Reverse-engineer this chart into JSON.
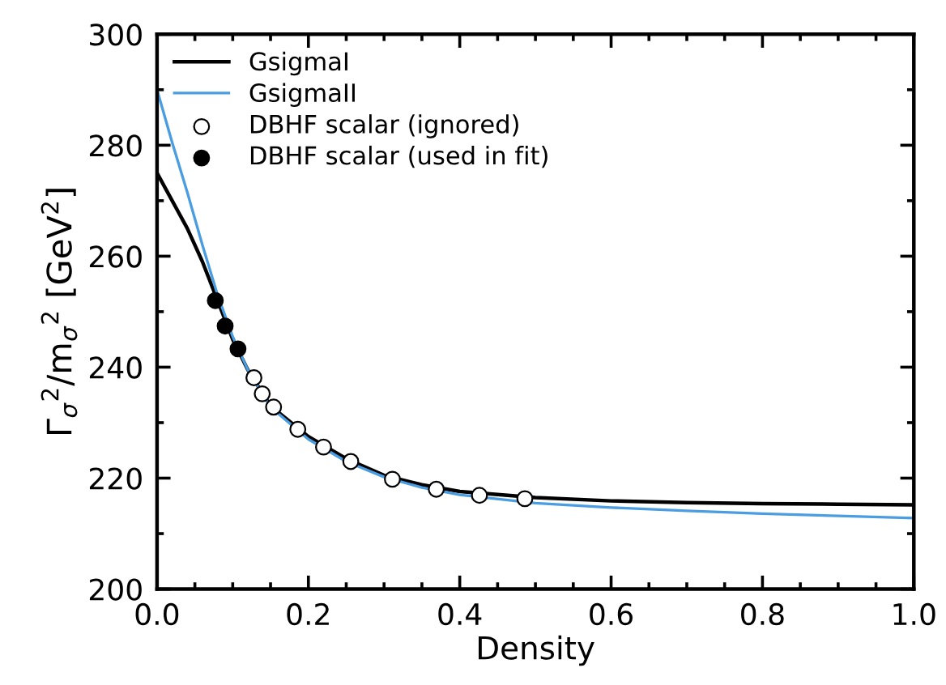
{
  "chart_data": {
    "type": "line",
    "xlabel": "Density",
    "ylabel": "Γ$_{σ}$$^{2}$/m$_{σ}$$^{2}$ [GeV$^{2}$]",
    "xlim": [
      0.0,
      1.0
    ],
    "xticks": [
      {
        "value": 0.0,
        "label": "0.0"
      },
      0.2,
      0.4,
      0.6,
      0.8,
      {
        "value": 1.0,
        "label": "1.0"
      }
    ],
    "ylim": [
      200,
      300
    ],
    "yticks": [
      200,
      220,
      240,
      260,
      280,
      300
    ],
    "grid": false,
    "legend": "top left",
    "series": [
      {
        "name": "GsigmaI",
        "color": "#000000",
        "marker": "none",
        "x": [
          0,
          0.02,
          0.04,
          0.06,
          0.08,
          0.1,
          0.12,
          0.15,
          0.2,
          0.25,
          0.3,
          0.35,
          0.4,
          0.5,
          0.6,
          0.7,
          0.8,
          0.9,
          1.0
        ],
        "values": [
          275,
          270,
          265,
          259,
          252,
          245,
          239.5,
          233,
          227.5,
          223.5,
          220.5,
          218.8,
          217.6,
          216.5,
          215.9,
          215.6,
          215.4,
          215.3,
          215.2
        ]
      },
      {
        "name": "GsigmaII",
        "color": "#4a9de0",
        "marker": "none",
        "x": [
          0,
          0.02,
          0.04,
          0.06,
          0.08,
          0.1,
          0.12,
          0.15,
          0.2,
          0.25,
          0.3,
          0.35,
          0.4,
          0.5,
          0.6,
          0.7,
          0.8,
          0.9,
          1.0
        ],
        "values": [
          290,
          280.5,
          271.5,
          262,
          253,
          245.5,
          239.5,
          232.8,
          227,
          223,
          220.2,
          218.3,
          217,
          215.5,
          214.7,
          214.1,
          213.6,
          213.2,
          212.8
        ]
      },
      {
        "name": "DBHF scalar (ignored)",
        "type": "scatter",
        "color": "#ffffff",
        "marker": "circle",
        "x": [
          0.128,
          0.139,
          0.154,
          0.186,
          0.22,
          0.256,
          0.311,
          0.369,
          0.426,
          0.486
        ],
        "values": [
          238.1,
          235.2,
          232.8,
          228.8,
          225.6,
          223.0,
          219.8,
          218.0,
          216.9,
          216.3
        ]
      },
      {
        "name": "DBHF scalar (used in fit)",
        "type": "scatter",
        "color": "#000000",
        "marker": "circle",
        "x": [
          0.077,
          0.09,
          0.107
        ],
        "values": [
          252.0,
          247.4,
          243.3
        ]
      }
    ]
  }
}
